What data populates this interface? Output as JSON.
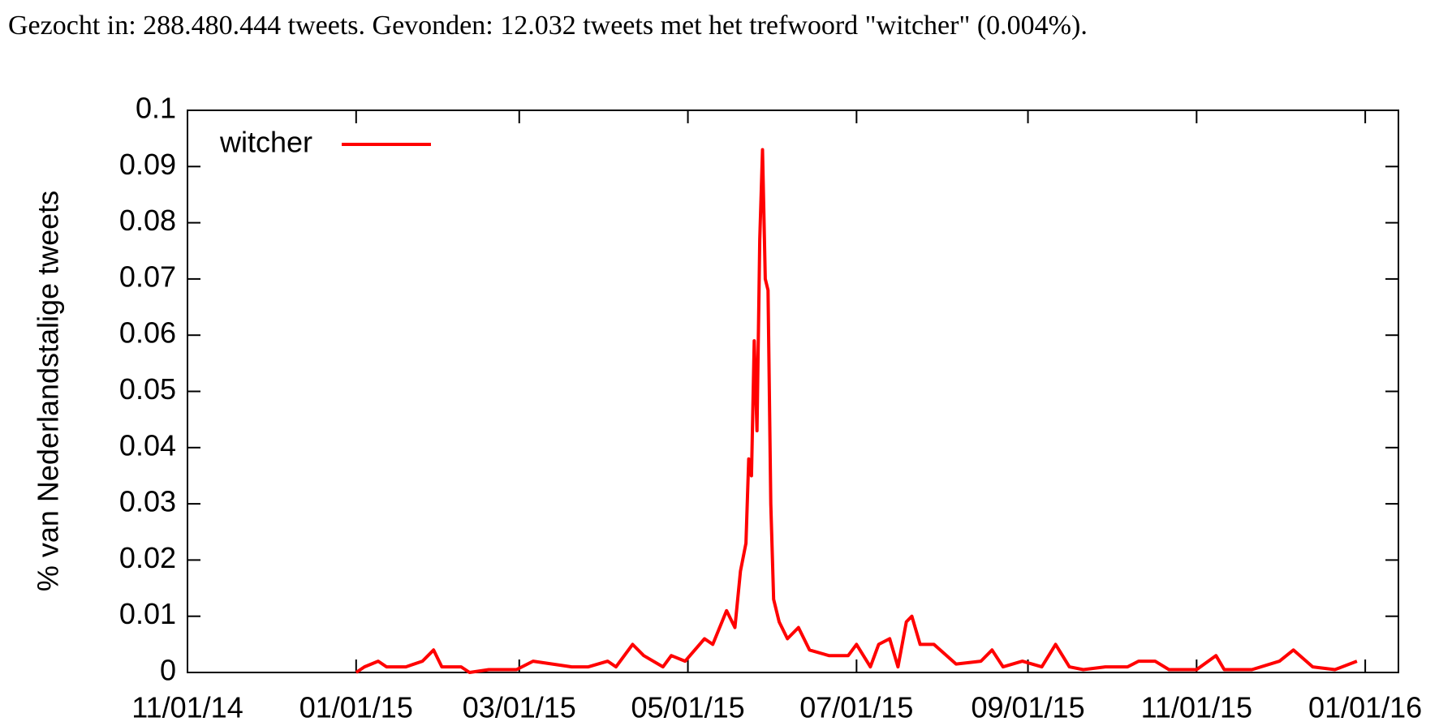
{
  "header": {
    "text": "Gezocht in: 288.480.444 tweets. Gevonden: 12.032 tweets met het trefwoord \"witcher\" (0.004%)."
  },
  "chart_data": {
    "type": "line",
    "ylabel": "% van Nederlandstalige tweets",
    "x": [
      "01/01/15",
      "01/04/15",
      "01/09/15",
      "01/12/15",
      "01/19/15",
      "01/25/15",
      "01/29/15",
      "02/01/15",
      "02/08/15",
      "02/11/15",
      "02/18/15",
      "02/28/15",
      "03/06/15",
      "03/13/15",
      "03/20/15",
      "03/26/15",
      "04/02/15",
      "04/05/15",
      "04/11/15",
      "04/15/15",
      "04/22/15",
      "04/25/15",
      "04/30/15",
      "05/07/15",
      "05/10/15",
      "05/15/15",
      "05/18/15",
      "05/20/15",
      "05/22/15",
      "05/23/15",
      "05/24/15",
      "05/25/15",
      "05/26/15",
      "05/27/15",
      "05/28/15",
      "05/29/15",
      "05/30/15",
      "05/31/15",
      "06/01/15",
      "06/03/15",
      "06/06/15",
      "06/10/15",
      "06/14/15",
      "06/21/15",
      "06/28/15",
      "07/01/15",
      "07/06/15",
      "07/09/15",
      "07/13/15",
      "07/16/15",
      "07/19/15",
      "07/21/15",
      "07/24/15",
      "07/29/15",
      "08/06/15",
      "08/15/15",
      "08/19/15",
      "08/23/15",
      "08/30/15",
      "09/06/15",
      "09/11/15",
      "09/16/15",
      "09/21/15",
      "09/29/15",
      "10/07/15",
      "10/11/15",
      "10/17/15",
      "10/22/15",
      "11/01/15",
      "11/08/15",
      "11/11/15",
      "11/21/15",
      "12/01/15",
      "12/06/15",
      "12/13/15",
      "12/21/15",
      "12/29/15"
    ],
    "series": [
      {
        "name": "witcher",
        "color": "#ff0000",
        "values": [
          0,
          0.001,
          0.002,
          0.001,
          0.001,
          0.002,
          0.004,
          0.001,
          0.001,
          0,
          0.0005,
          0.0005,
          0.002,
          0.0015,
          0.001,
          0.001,
          0.002,
          0.001,
          0.005,
          0.003,
          0.001,
          0.003,
          0.002,
          0.006,
          0.005,
          0.011,
          0.008,
          0.018,
          0.023,
          0.038,
          0.035,
          0.059,
          0.043,
          0.077,
          0.093,
          0.07,
          0.068,
          0.03,
          0.013,
          0.009,
          0.006,
          0.008,
          0.004,
          0.003,
          0.003,
          0.005,
          0.001,
          0.005,
          0.006,
          0.001,
          0.009,
          0.01,
          0.005,
          0.005,
          0.0015,
          0.002,
          0.004,
          0.001,
          0.002,
          0.001,
          0.005,
          0.001,
          0.0005,
          0.001,
          0.001,
          0.002,
          0.002,
          0.0005,
          0.0005,
          0.003,
          0.0005,
          0.0005,
          0.002,
          0.004,
          0.001,
          0.0005,
          0.002
        ]
      }
    ],
    "xlim": [
      "11/01/14",
      "01/13/16"
    ],
    "xticks": [
      "11/01/14",
      "01/01/15",
      "03/01/15",
      "05/01/15",
      "07/01/15",
      "09/01/15",
      "11/01/15",
      "01/01/16"
    ],
    "ylim": [
      0,
      0.1
    ],
    "yticks": [
      0,
      0.01,
      0.02,
      0.03,
      0.04,
      0.05,
      0.06,
      0.07,
      0.08,
      0.09,
      0.1
    ],
    "legend": "upper left"
  }
}
